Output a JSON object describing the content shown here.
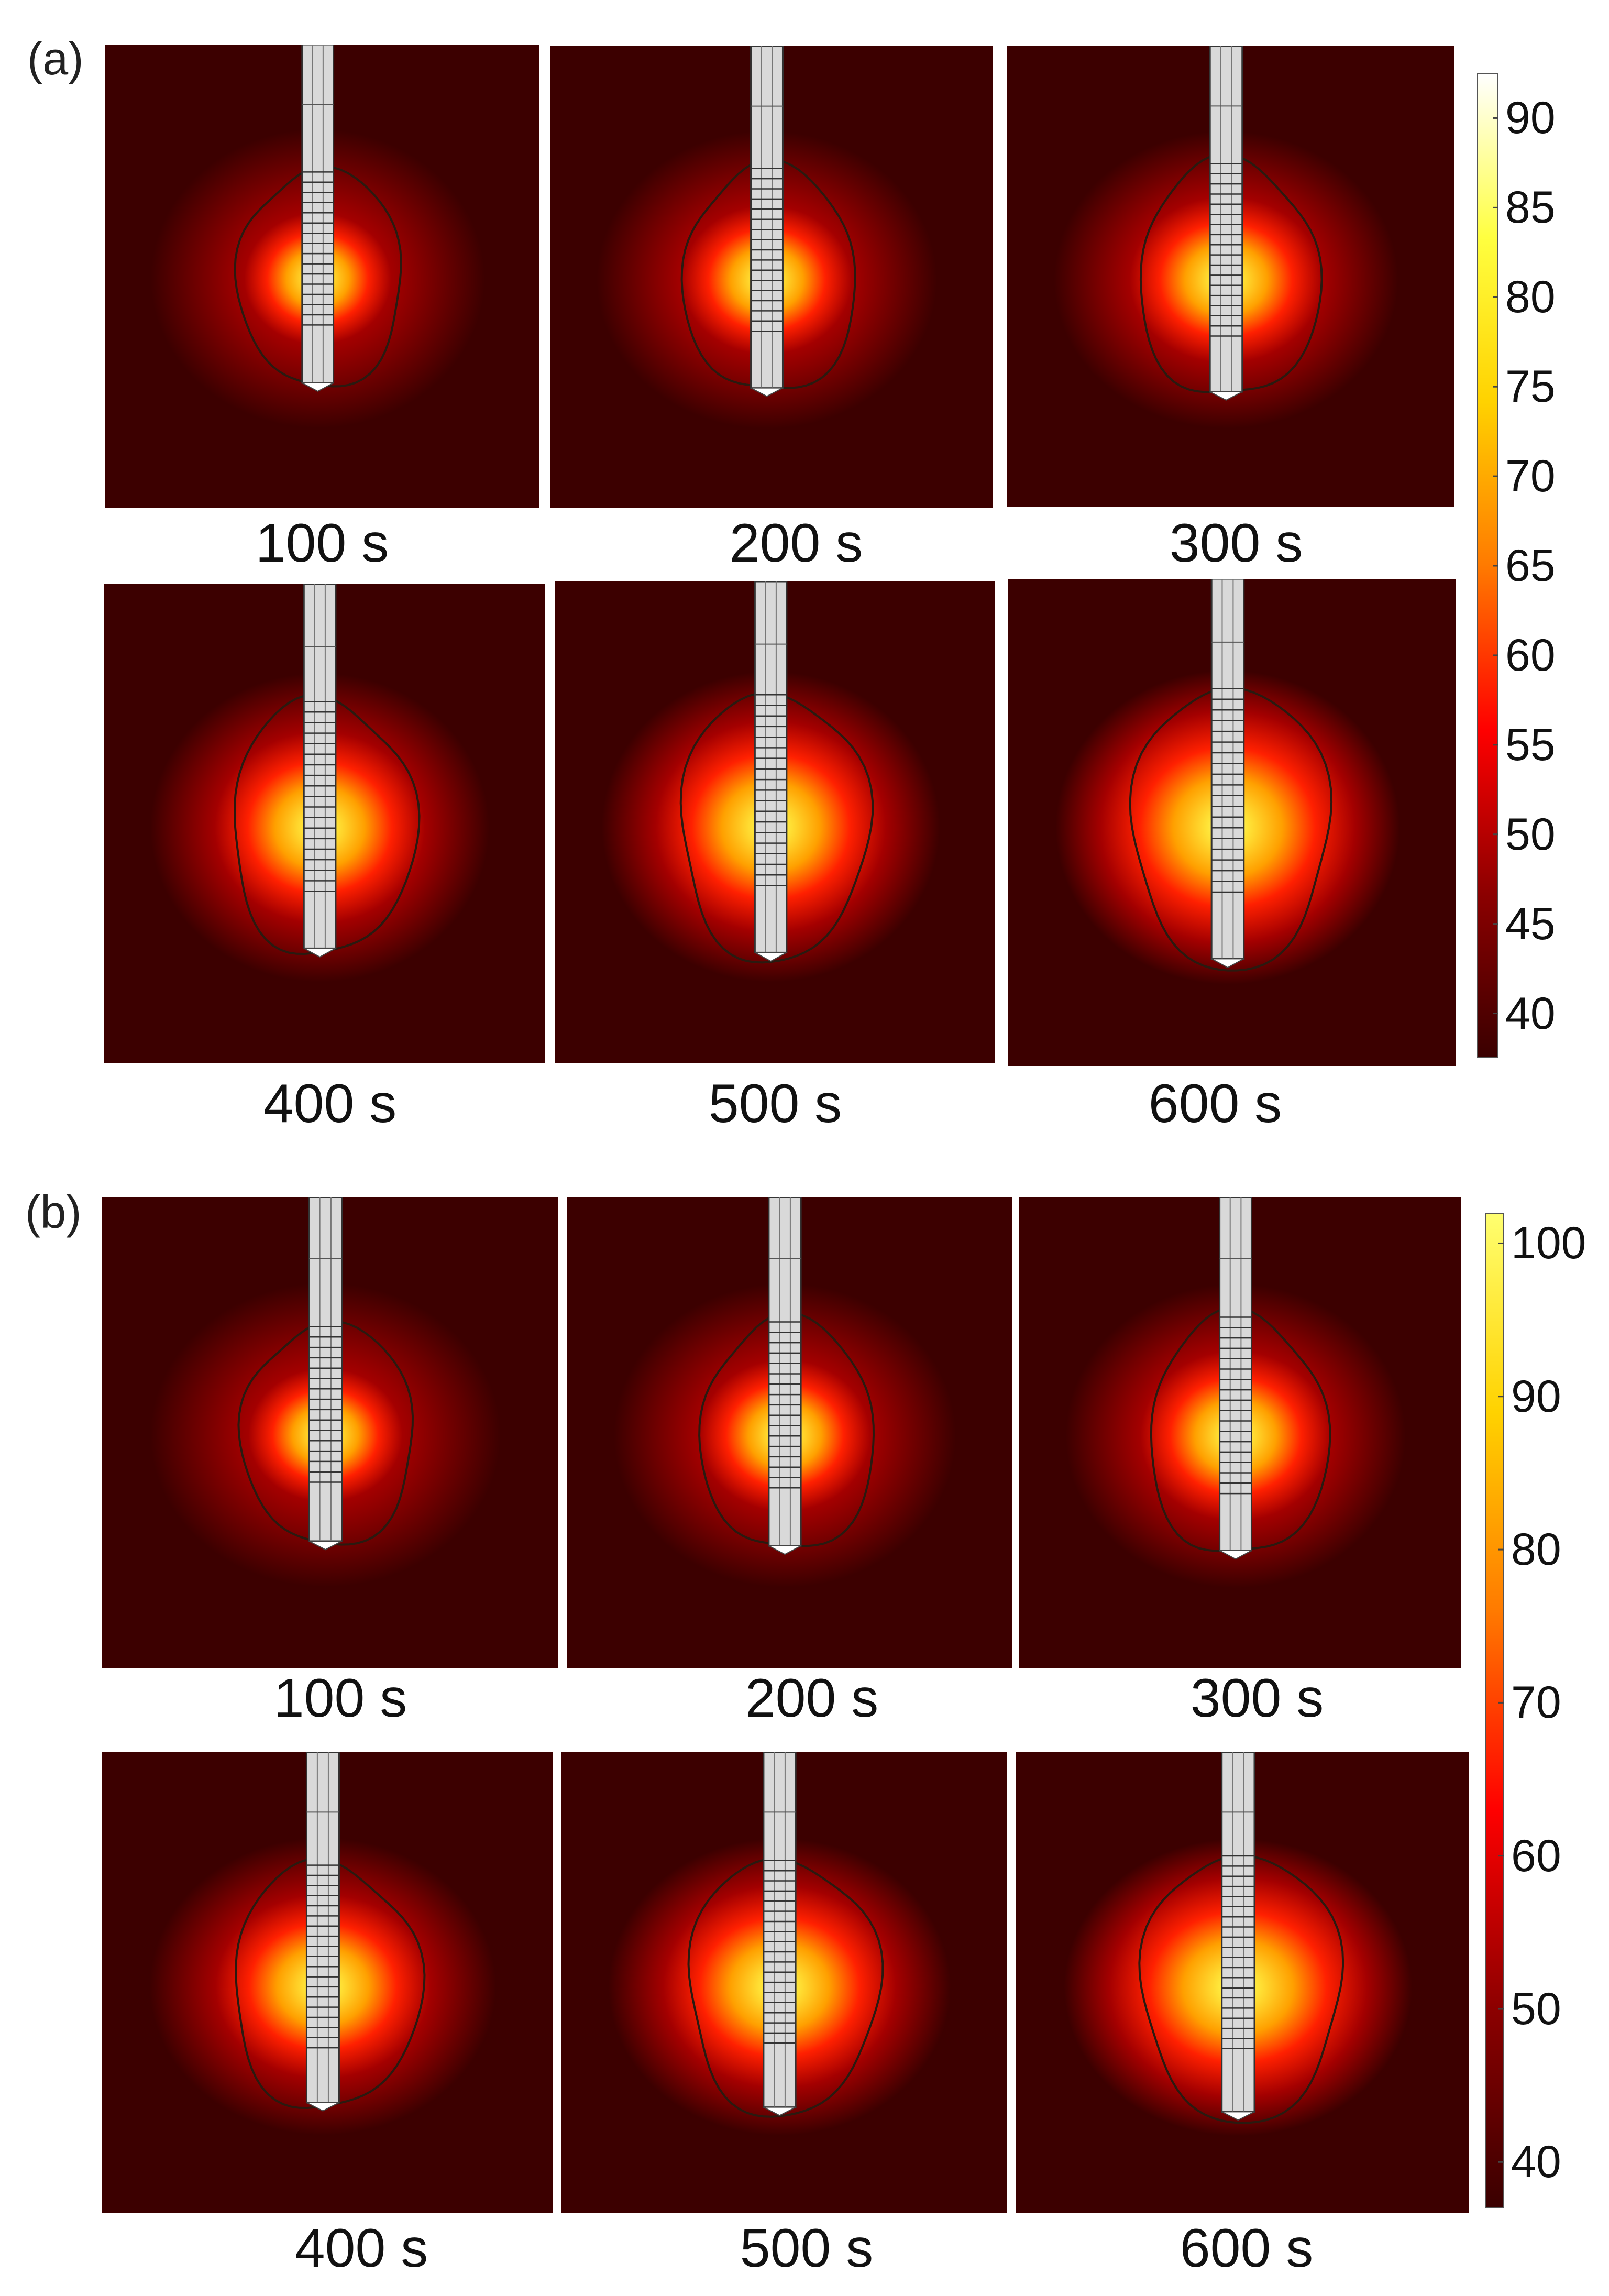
{
  "panels": [
    {
      "label": "(a)",
      "times": [
        "100 s",
        "200 s",
        "300 s",
        "400 s",
        "500 s",
        "600 s"
      ],
      "colorbar": {
        "ticks": [
          "90",
          "85",
          "80",
          "75",
          "70",
          "65",
          "60",
          "55",
          "50",
          "45",
          "40"
        ],
        "values": [
          90,
          85,
          80,
          75,
          70,
          65,
          60,
          55,
          50,
          45,
          40
        ],
        "min": 37.5,
        "max": 92.5,
        "stops": [
          "#3a0000",
          "#8c0000",
          "#ff0000",
          "#ff7a00",
          "#ffd200",
          "#ffff40",
          "#ffffff"
        ]
      }
    },
    {
      "label": "(b)",
      "times": [
        "100 s",
        "200 s",
        "300 s",
        "400 s",
        "500 s",
        "600 s"
      ],
      "colorbar": {
        "ticks": [
          "100",
          "90",
          "80",
          "70",
          "60",
          "50",
          "40"
        ],
        "values": [
          100,
          90,
          80,
          70,
          60,
          50,
          40
        ],
        "min": 37,
        "max": 102,
        "stops": [
          "#3a0000",
          "#8c0000",
          "#ff0000",
          "#ff7a00",
          "#ffd200",
          "#ffff70"
        ]
      }
    }
  ]
}
